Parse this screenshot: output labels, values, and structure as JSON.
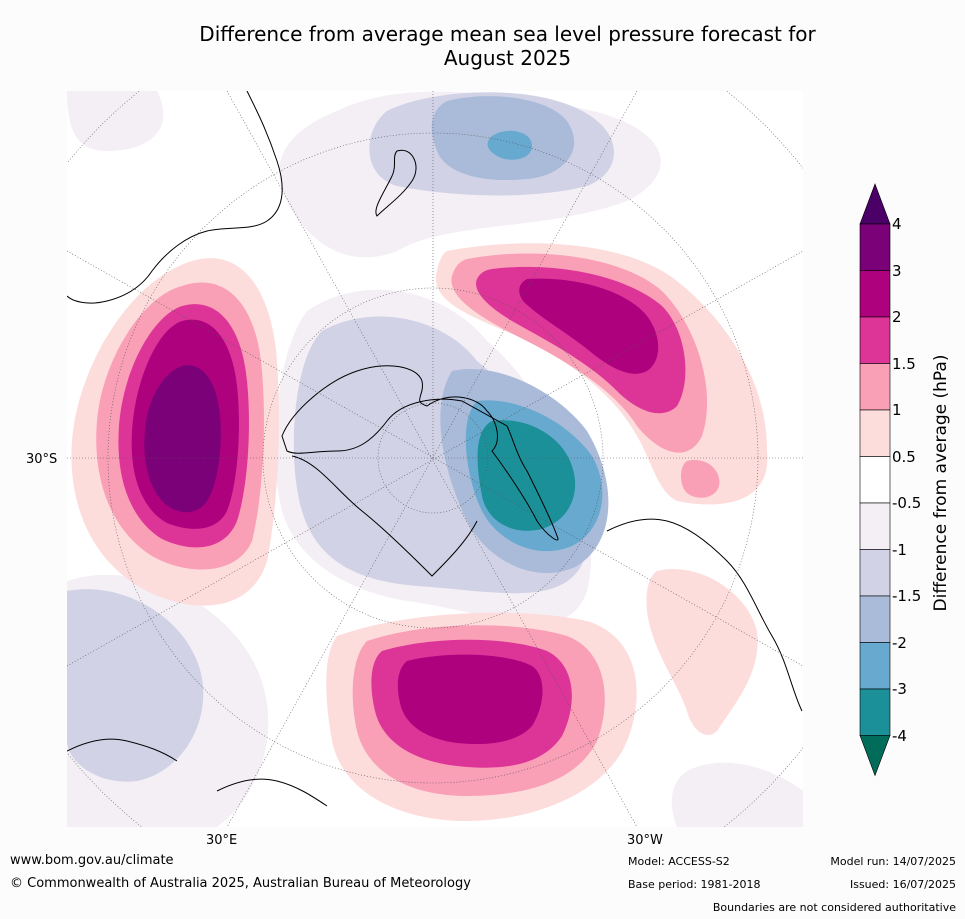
{
  "title_line1": "Difference from average mean sea level pressure forecast for",
  "title_line2": "August 2025",
  "map": {
    "projection": "south-polar-stereographic",
    "labels": {
      "lat_30s": "30°S",
      "lon_30e": "30°E",
      "lon_30w": "30°W"
    },
    "land_color": "none",
    "coastline_color": "#000000",
    "border_color": "#808080",
    "anomaly_centres": [
      {
        "region": "South Indian Ocean (west of Australia)",
        "peak_hPa": "3 to 4"
      },
      {
        "region": "South Pacific (east of New Zealand)",
        "peak_hPa": "2 to 3"
      },
      {
        "region": "South Atlantic (south of Africa)",
        "peak_hPa": "2 to 3"
      },
      {
        "region": "Bellingshausen / Antarctic Peninsula",
        "peak_hPa": "-3 to -4"
      },
      {
        "region": "Tasman Sea / south of New Zealand",
        "peak_hPa": "-2 to -3"
      }
    ]
  },
  "colorbar": {
    "title": "Difference from average (hPa)",
    "tick_labels": [
      "4",
      "3",
      "2",
      "1.5",
      "1",
      "0.5",
      "-0.5",
      "-1",
      "-1.5",
      "-2",
      "-3",
      "-4"
    ],
    "bins": [
      {
        "range": "> 4",
        "color": "#4b0068"
      },
      {
        "range": "3 to 4",
        "color": "#7a0177"
      },
      {
        "range": "2 to 3",
        "color": "#ae017e"
      },
      {
        "range": "1.5 to 2",
        "color": "#dd3497"
      },
      {
        "range": "1 to 1.5",
        "color": "#f99fb6"
      },
      {
        "range": "0.5 to 1",
        "color": "#fddcdc"
      },
      {
        "range": "-0.5 to 0.5",
        "color": "#ffffff"
      },
      {
        "range": "-1 to -0.5",
        "color": "#f4eef5"
      },
      {
        "range": "-1.5 to -1",
        "color": "#d1d2e6"
      },
      {
        "range": "-2 to -1.5",
        "color": "#a9bbd9"
      },
      {
        "range": "-3 to -2",
        "color": "#67a9cf"
      },
      {
        "range": "-4 to -3",
        "color": "#1c9099"
      },
      {
        "range": "< -4",
        "color": "#016c59"
      }
    ]
  },
  "footer": {
    "website": "www.bom.gov.au/climate",
    "copyright": "© Commonwealth of Australia 2025, Australian Bureau of Meteorology",
    "model": "Model: ACCESS-S2",
    "base_period": "Base period: 1981-2018",
    "model_run": "Model run: 14/07/2025",
    "issued": "Issued: 16/07/2025",
    "disclaimer": "Boundaries are not considered authoritative"
  }
}
